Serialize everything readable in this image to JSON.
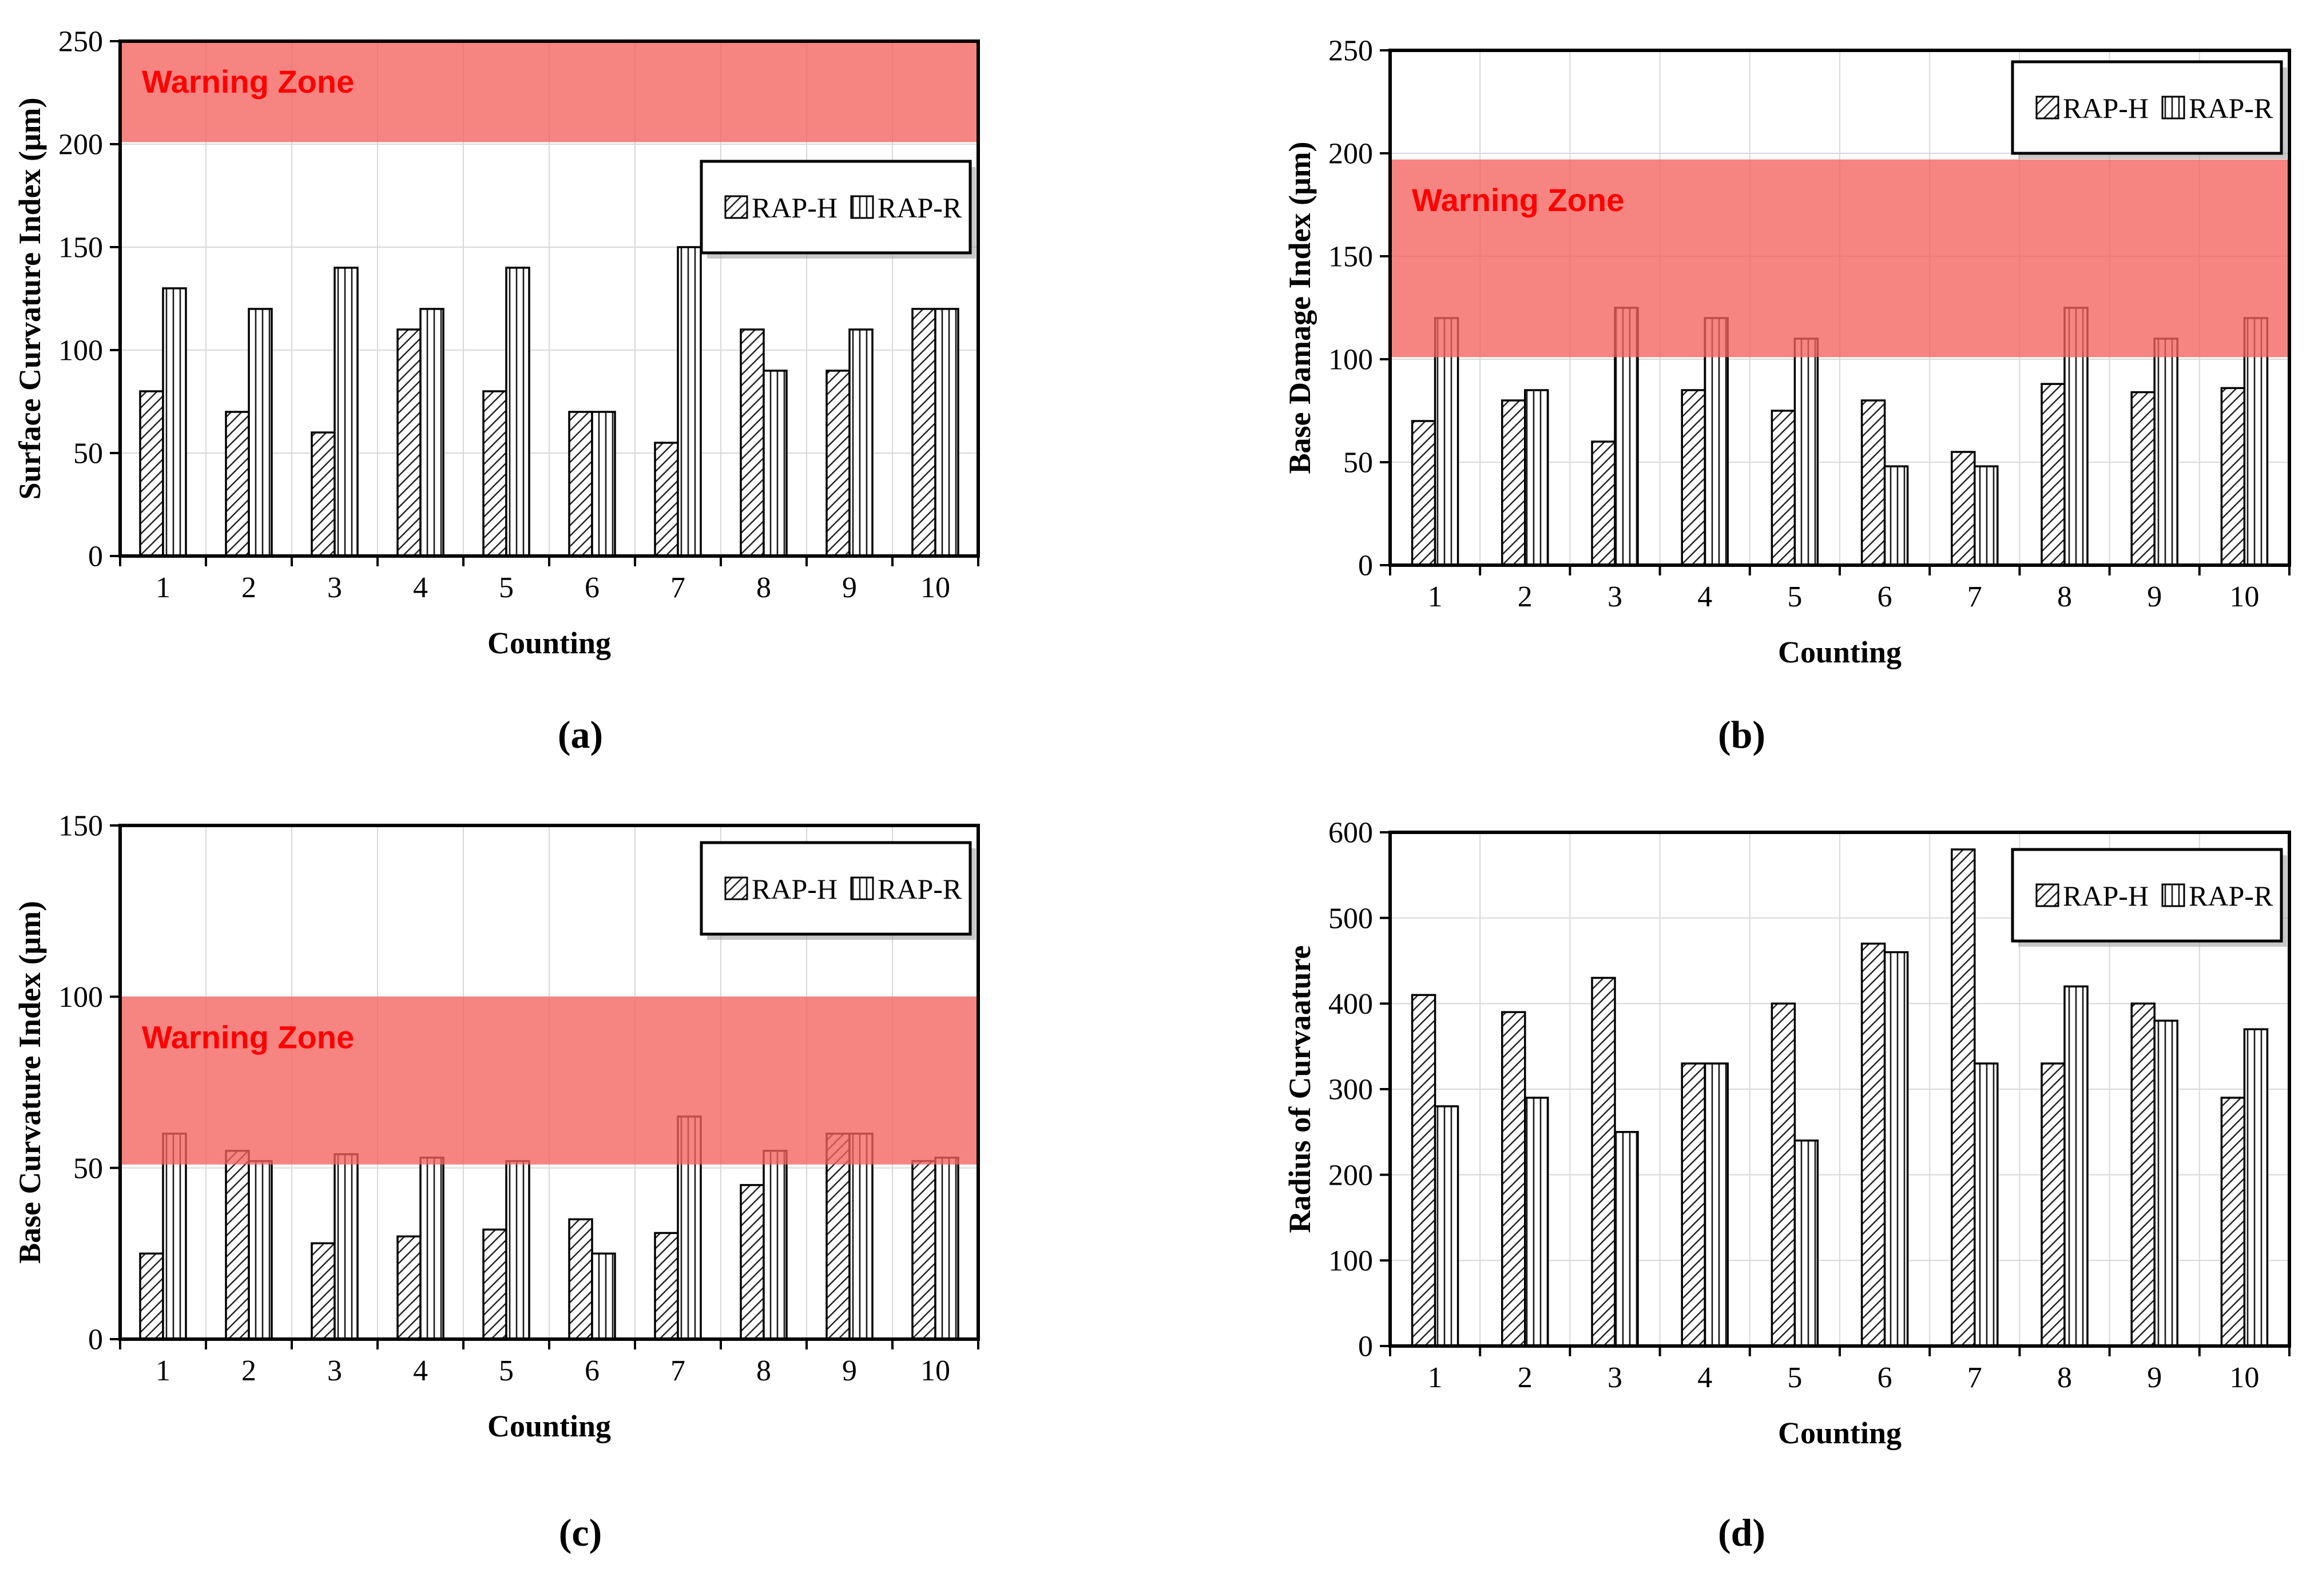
{
  "figure": {
    "description": "Four bar-chart panels comparing RAP-H and RAP-R over countings 1-10"
  },
  "legend": {
    "items": [
      {
        "label": "RAP-H",
        "pattern": "diagonal-hatch"
      },
      {
        "label": "RAP-R",
        "pattern": "vertical-hatch"
      }
    ]
  },
  "colors": {
    "warning_fill": "#F4615E",
    "warning_text": "#FF0000",
    "grid": "#D8D8D8",
    "bar_outline": "#000000",
    "axis": "#000000",
    "legend_shadow": "#9a9a9a"
  },
  "chart_data": [
    {
      "id": "a",
      "caption": "(a)",
      "type": "bar",
      "title": "",
      "xlabel": "Counting",
      "ylabel": "Surface Curvature Index (μm)",
      "categories": [
        "1",
        "2",
        "3",
        "4",
        "5",
        "6",
        "7",
        "8",
        "9",
        "10"
      ],
      "series": [
        {
          "name": "RAP-H",
          "values": [
            80,
            70,
            60,
            110,
            80,
            70,
            55,
            110,
            90,
            120
          ]
        },
        {
          "name": "RAP-R",
          "values": [
            130,
            120,
            140,
            120,
            140,
            70,
            150,
            90,
            110,
            120
          ]
        }
      ],
      "ylim": [
        0,
        250
      ],
      "ytick_step": 50,
      "grid": true,
      "warning_zone": {
        "label": "Warning Zone",
        "from": 201,
        "to": 250
      },
      "legend_position": "inside-top-right",
      "legend_y": 282
    },
    {
      "id": "b",
      "caption": "(b)",
      "type": "bar",
      "title": "",
      "xlabel": "Counting",
      "ylabel": "Base Damage Index (μm)",
      "categories": [
        "1",
        "2",
        "3",
        "4",
        "5",
        "6",
        "7",
        "8",
        "9",
        "10"
      ],
      "series": [
        {
          "name": "RAP-H",
          "values": [
            70,
            80,
            60,
            85,
            75,
            80,
            55,
            88,
            84,
            86
          ]
        },
        {
          "name": "RAP-R",
          "values": [
            120,
            85,
            125,
            120,
            110,
            48,
            48,
            125,
            110,
            120
          ]
        }
      ],
      "ylim": [
        0,
        250
      ],
      "ytick_step": 50,
      "grid": true,
      "warning_zone": {
        "label": "Warning Zone",
        "from": 101,
        "to": 197
      },
      "legend_position": "inside-top-right",
      "legend_y": 108
    },
    {
      "id": "c",
      "caption": "(c)",
      "type": "bar",
      "title": "",
      "xlabel": "Counting",
      "ylabel": "Base Curvature Index (μm)",
      "categories": [
        "1",
        "2",
        "3",
        "4",
        "5",
        "6",
        "7",
        "8",
        "9",
        "10"
      ],
      "series": [
        {
          "name": "RAP-H",
          "values": [
            25,
            55,
            28,
            30,
            32,
            35,
            31,
            45,
            60,
            52
          ]
        },
        {
          "name": "RAP-R",
          "values": [
            60,
            52,
            54,
            53,
            52,
            25,
            65,
            55,
            60,
            53
          ]
        }
      ],
      "ylim": [
        0,
        150
      ],
      "ytick_step": 50,
      "grid": true,
      "warning_zone": {
        "label": "Warning Zone",
        "from": 51,
        "to": 100
      },
      "legend_position": "inside-top-right",
      "legend_y": 78
    },
    {
      "id": "d",
      "caption": "(d)",
      "type": "bar",
      "title": "",
      "xlabel": "Counting",
      "ylabel": "Radius of Curvaature",
      "categories": [
        "1",
        "2",
        "3",
        "4",
        "5",
        "6",
        "7",
        "8",
        "9",
        "10"
      ],
      "series": [
        {
          "name": "RAP-H",
          "values": [
            410,
            390,
            430,
            330,
            400,
            470,
            580,
            330,
            400,
            290
          ]
        },
        {
          "name": "RAP-R",
          "values": [
            280,
            290,
            250,
            330,
            240,
            460,
            330,
            420,
            380,
            370
          ]
        }
      ],
      "ylim": [
        0,
        600
      ],
      "ytick_step": 100,
      "grid": true,
      "warning_zone": null,
      "legend_position": "inside-top-right",
      "legend_y": 90
    }
  ]
}
